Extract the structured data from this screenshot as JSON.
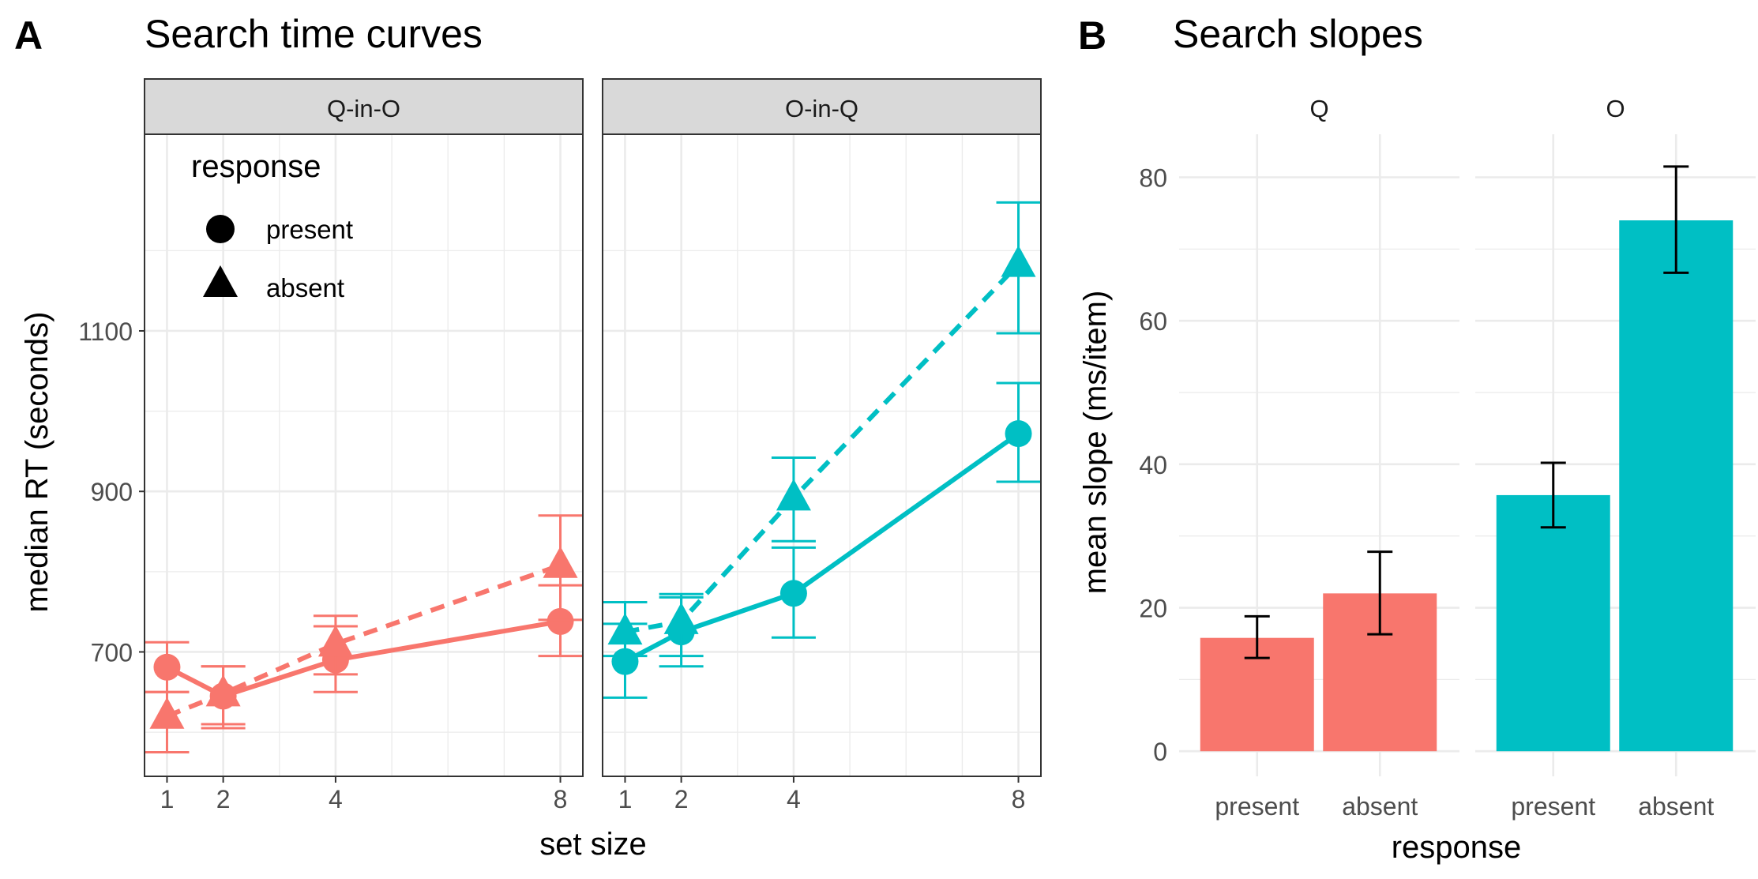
{
  "panel_a": {
    "label": "A",
    "title": "Search time curves",
    "xlabel": "set size",
    "ylabel": "median RT (seconds)",
    "legend": {
      "title": "response",
      "items": [
        {
          "label": "present",
          "shape": "circle"
        },
        {
          "label": "absent",
          "shape": "triangle"
        }
      ]
    }
  },
  "panel_b": {
    "label": "B",
    "title": "Search slopes",
    "xlabel": "response",
    "ylabel": "mean slope (ms/item)"
  },
  "colors": {
    "red": "#F8766D",
    "teal": "#00BFC4",
    "strip": "#d9d9d9",
    "grid": "#ebebeb",
    "text": "#4d4d4d"
  },
  "chart_data": [
    {
      "type": "line",
      "title": "Search time curves",
      "xlabel": "set size",
      "ylabel": "median RT (seconds)",
      "x": [
        1,
        2,
        4,
        8
      ],
      "x_ticks": [
        "1",
        "2",
        "4",
        "8"
      ],
      "y_ticks": [
        700,
        900,
        1100
      ],
      "ylim": [
        545,
        1345
      ],
      "facets": [
        {
          "strip": "Q-in-O",
          "color": "#F8766D",
          "series": [
            {
              "name": "present",
              "shape": "circle",
              "linestyle": "solid",
              "values": [
                681,
                645,
                690,
                738
              ],
              "ci_low": [
                650,
                605,
                650,
                695
              ],
              "ci_high": [
                712,
                682,
                732,
                783
              ]
            },
            {
              "name": "absent",
              "shape": "triangle",
              "linestyle": "dashed",
              "values": [
                620,
                648,
                710,
                808
              ],
              "ci_low": [
                575,
                610,
                672,
                740
              ],
              "ci_high": [
                650,
                682,
                745,
                870
              ]
            }
          ]
        },
        {
          "strip": "O-in-Q",
          "color": "#00BFC4",
          "series": [
            {
              "name": "present",
              "shape": "circle",
              "linestyle": "solid",
              "values": [
                688,
                725,
                773,
                972
              ],
              "ci_low": [
                643,
                682,
                718,
                912
              ],
              "ci_high": [
                735,
                768,
                830,
                1035
              ]
            },
            {
              "name": "absent",
              "shape": "triangle",
              "linestyle": "dashed",
              "values": [
                725,
                738,
                892,
                1183
              ],
              "ci_low": [
                695,
                695,
                838,
                1097
              ],
              "ci_high": [
                762,
                772,
                942,
                1260
              ]
            }
          ]
        }
      ],
      "legend_position": "top-left"
    },
    {
      "type": "bar",
      "title": "Search slopes",
      "xlabel": "response",
      "ylabel": "mean slope (ms/item)",
      "y_ticks": [
        0,
        20,
        40,
        60,
        80
      ],
      "ylim": [
        -3.5,
        86
      ],
      "facets": [
        {
          "strip": "Q",
          "color": "#F8766D",
          "categories": [
            "present",
            "absent"
          ],
          "values": [
            15.8,
            22.0
          ],
          "ci_low": [
            13.0,
            16.3
          ],
          "ci_high": [
            18.8,
            27.8
          ]
        },
        {
          "strip": "O",
          "color": "#00BFC4",
          "categories": [
            "present",
            "absent"
          ],
          "values": [
            35.7,
            74.0
          ],
          "ci_low": [
            31.2,
            66.7
          ],
          "ci_high": [
            40.2,
            81.5
          ]
        }
      ]
    }
  ]
}
